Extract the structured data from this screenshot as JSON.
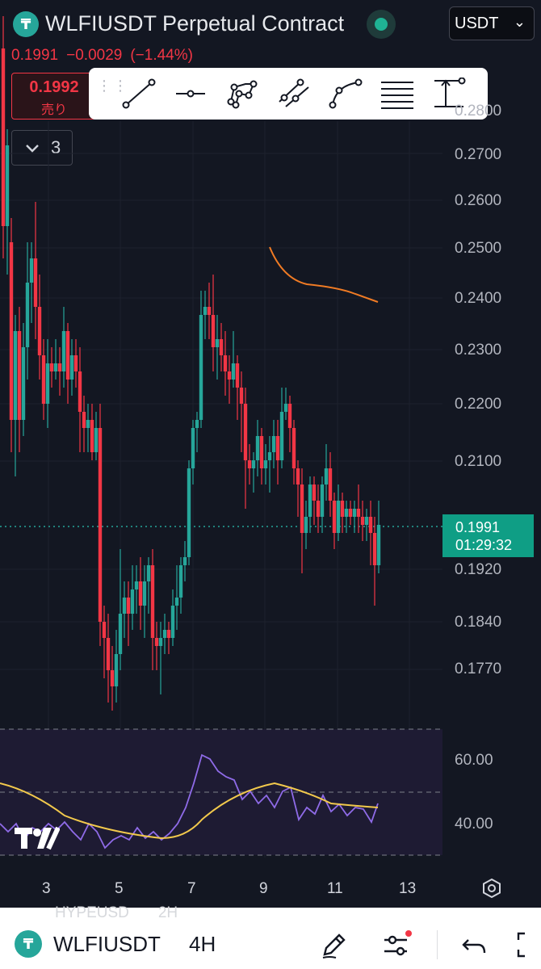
{
  "header": {
    "logo_letter": "₸",
    "title": "WLFIUSDT Perpetual Contract",
    "currency": "USDT"
  },
  "price_line": {
    "last": "0.1991",
    "change": "−0.0029",
    "change_pct": "(−1.44%)"
  },
  "sell_box": {
    "price": "0.1992",
    "label": "売り"
  },
  "collapse": {
    "count": "3"
  },
  "toolbar": {
    "tools": [
      "trend-line",
      "horizontal-ray",
      "polyline",
      "parallel-channel",
      "curve",
      "fib-retracement",
      "price-range"
    ]
  },
  "y_axis": {
    "labels": [
      "0.2800",
      "0.2700",
      "0.2600",
      "0.2500",
      "0.2400",
      "0.2300",
      "0.2200",
      "0.2100",
      "0.1920",
      "0.1840",
      "0.1770"
    ]
  },
  "current_price": {
    "price": "0.1991",
    "countdown": "01:29:32"
  },
  "rsi": {
    "labels": [
      "60.00",
      "40.00"
    ]
  },
  "x_axis": {
    "labels": [
      "3",
      "5",
      "7",
      "9",
      "11",
      "13"
    ]
  },
  "bottom_bar": {
    "ghost_symbol": "HYPEUSD",
    "ghost_tf": "2H",
    "symbol": "WLFIUSDT",
    "timeframe": "4H"
  },
  "colors": {
    "background": "#131722",
    "up": "#26a69a",
    "down": "#f23645",
    "rsi": "#8f6be8",
    "rsi_ma": "#f2c94c",
    "overlay": "#f07b24",
    "accent": "#0f9e85"
  }
}
